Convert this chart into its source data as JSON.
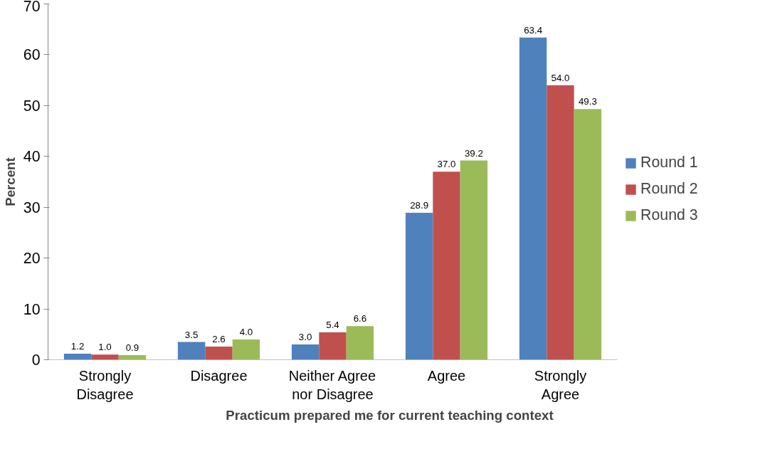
{
  "chart_data": {
    "type": "bar",
    "xlabel": "Practicum prepared me for current teaching context",
    "ylabel": "Percent",
    "categories": [
      "Strongly Disagree",
      "Disagree",
      "Neither Agree nor Disagree",
      "Agree",
      "Strongly Agree"
    ],
    "series": [
      {
        "name": "Round 1",
        "color": "#4f81bd",
        "values": [
          1.2,
          3.5,
          3.0,
          28.9,
          63.4
        ],
        "value_labels": [
          "1.2",
          "3.5",
          "3.0",
          "28.9",
          "63.4"
        ]
      },
      {
        "name": "Round 2",
        "color": "#c0504d",
        "values": [
          1.0,
          2.6,
          5.4,
          37.0,
          54.0
        ],
        "value_labels": [
          "1.0",
          "2.6",
          "5.4",
          "37.0",
          "54.0"
        ]
      },
      {
        "name": "Round 3",
        "color": "#9bbb59",
        "values": [
          0.9,
          4.0,
          6.6,
          39.2,
          49.3
        ],
        "value_labels": [
          "0.9",
          "4.0",
          "6.6",
          "39.2",
          "49.3"
        ]
      }
    ],
    "ylim": [
      0,
      70
    ],
    "yticks": [
      0,
      10,
      20,
      30,
      40,
      50,
      60,
      70
    ],
    "grid": false,
    "legend": "right"
  }
}
